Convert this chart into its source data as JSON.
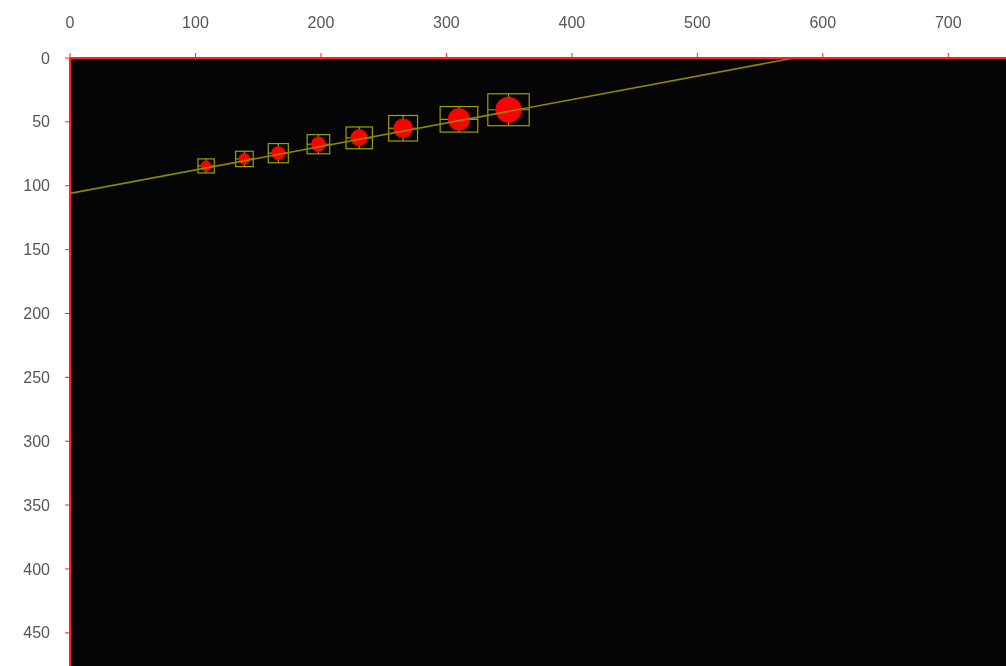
{
  "chart_data": {
    "type": "line",
    "xlim": [
      0,
      746
    ],
    "ylim": [
      476,
      0
    ],
    "xticks": [
      0,
      100,
      200,
      300,
      400,
      500,
      600,
      700
    ],
    "yticks": [
      0,
      50,
      100,
      150,
      200,
      250,
      300,
      350,
      400,
      450
    ],
    "grid": false,
    "series": [
      {
        "type": "bubble",
        "marker": "circle",
        "color": "#ff0000",
        "x": [
          108.5,
          139,
          166,
          198,
          230.5,
          265.5,
          310,
          349.5
        ],
        "values": [
          84.5,
          79,
          74.5,
          67.5,
          62.5,
          55,
          48,
          40.5
        ],
        "sizes": [
          0.17,
          0.2,
          0.29,
          0.33,
          0.43,
          0.56,
          0.73,
          1
        ],
        "xerrors": [
          6.5,
          7,
          8,
          9,
          10.5,
          11.5,
          15,
          16.5
        ],
        "errors": [
          5.5,
          6,
          7.5,
          7.5,
          8.5,
          10,
          10,
          12.5
        ]
      },
      {
        "color": "#8a8a00",
        "x": [
          0,
          577
        ],
        "values": [
          106,
          0
        ],
        "line_style": "solid"
      }
    ]
  }
}
